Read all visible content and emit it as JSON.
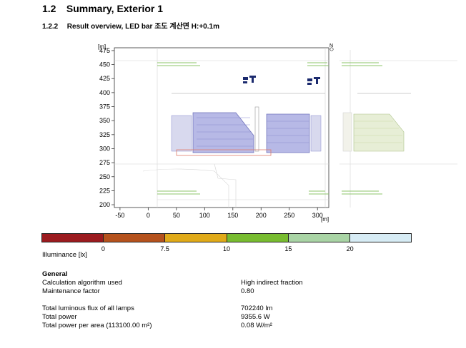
{
  "section": {
    "number": "1.2",
    "title": "Summary, Exterior 1"
  },
  "subsection": {
    "number": "1.2.2",
    "title": "Result overview, LED bar 조도 계산면 H:+0.1m"
  },
  "chart_data": {
    "type": "plan",
    "x_unit": "[m]",
    "y_unit": "[m]",
    "x_ticks": [
      -50,
      0,
      50,
      100,
      150,
      200,
      250,
      300
    ],
    "y_ticks": [
      475,
      450,
      425,
      400,
      375,
      350,
      325,
      300,
      275,
      250,
      225,
      200
    ],
    "xlim": [
      -60,
      320
    ],
    "ylim": [
      195,
      480
    ],
    "north_label": "N"
  },
  "scale": {
    "colors": [
      "#9b1b1f",
      "#b5521d",
      "#e0aa19",
      "#78bc30",
      "#a9d4a5",
      "#d7ecf5"
    ],
    "ticks": [
      "0",
      "7.5",
      "10",
      "15",
      "20"
    ],
    "label": "Illuminance [lx]"
  },
  "general": {
    "title": "General",
    "rows": [
      {
        "label": "Calculation algorithm used",
        "value": "High indirect fraction"
      },
      {
        "label": "Maintenance factor",
        "value": "0.80"
      },
      {
        "label": "Total luminous flux of all lamps",
        "value": "702240 lm"
      },
      {
        "label": "Total power",
        "value": "9355.6 W"
      },
      {
        "label": "Total power per area (113100.00 m²)",
        "value": "0.08 W/m²"
      }
    ]
  }
}
